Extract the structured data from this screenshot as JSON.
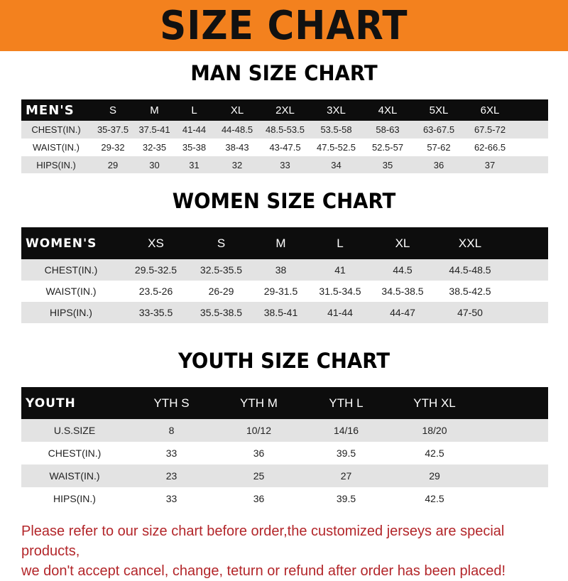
{
  "title": "SIZE CHART",
  "colors": {
    "banner": "#f3811e",
    "header_row": "#0d0d0d",
    "stripe": "#e3e3e3",
    "notice": "#b3262a"
  },
  "men": {
    "title": "MAN SIZE CHART",
    "columns": [
      "MEN'S",
      "S",
      "M",
      "L",
      "XL",
      "2XL",
      "3XL",
      "4XL",
      "5XL",
      "6XL"
    ],
    "rows": [
      [
        "CHEST(IN.)",
        "35-37.5",
        "37.5-41",
        "41-44",
        "44-48.5",
        "48.5-53.5",
        "53.5-58",
        "58-63",
        "63-67.5",
        "67.5-72"
      ],
      [
        "WAIST(IN.)",
        "29-32",
        "32-35",
        "35-38",
        "38-43",
        "43-47.5",
        "47.5-52.5",
        "52.5-57",
        "57-62",
        "62-66.5"
      ],
      [
        "HIPS(IN.)",
        "29",
        "30",
        "31",
        "32",
        "33",
        "34",
        "35",
        "36",
        "37"
      ]
    ]
  },
  "women": {
    "title": "WOMEN SIZE CHART",
    "columns": [
      "WOMEN'S",
      "XS",
      "S",
      "M",
      "L",
      "XL",
      "XXL"
    ],
    "rows": [
      [
        "CHEST(IN.)",
        "29.5-32.5",
        "32.5-35.5",
        "38",
        "41",
        "44.5",
        "44.5-48.5"
      ],
      [
        "WAIST(IN.)",
        "23.5-26",
        "26-29",
        "29-31.5",
        "31.5-34.5",
        "34.5-38.5",
        "38.5-42.5"
      ],
      [
        "HIPS(IN.)",
        "33-35.5",
        "35.5-38.5",
        "38.5-41",
        "41-44",
        "44-47",
        "47-50"
      ]
    ]
  },
  "youth": {
    "title": "YOUTH SIZE CHART",
    "columns": [
      "YOUTH",
      "YTH S",
      "YTH M",
      "YTH L",
      "YTH XL"
    ],
    "rows": [
      [
        "U.S.SIZE",
        "8",
        "10/12",
        "14/16",
        "18/20"
      ],
      [
        "CHEST(IN.)",
        "33",
        "36",
        "39.5",
        "42.5"
      ],
      [
        "WAIST(IN.)",
        "23",
        "25",
        "27",
        "29"
      ],
      [
        "HIPS(IN.)",
        "33",
        "36",
        "39.5",
        "42.5"
      ]
    ]
  },
  "notice": {
    "line1": "Please refer to our size chart before order,the customized jerseys are special products,",
    "line2": "we don't accept cancel, change, teturn or refund after order has been placed!"
  }
}
